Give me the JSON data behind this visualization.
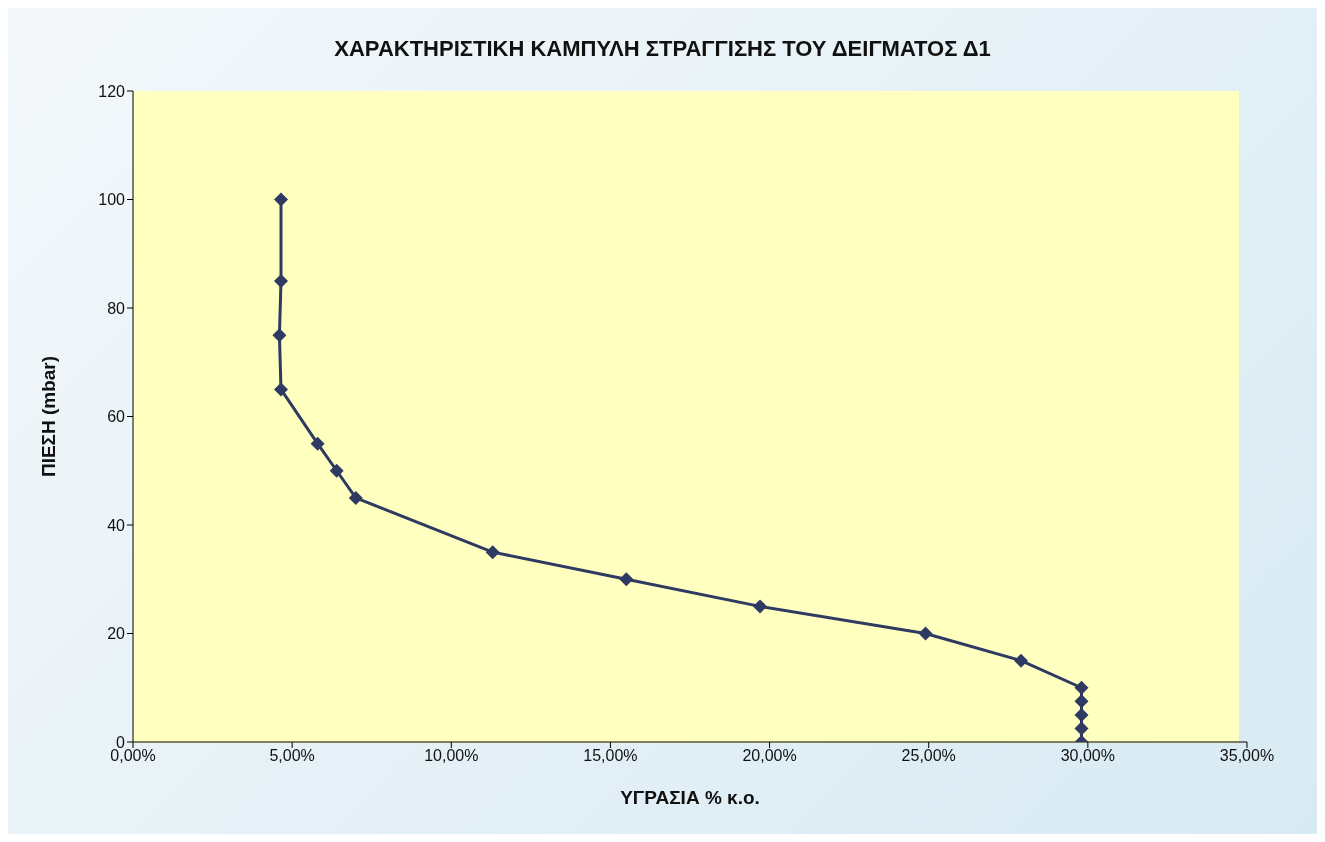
{
  "chart_data": {
    "type": "line",
    "title": "ΧΑΡΑΚΤΗΡΙΣΤΙΚΗ ΚΑΜΠΥΛΗ ΣΤΡΑΓΓΙΣΗΣ ΤΟΥ ΔΕΙΓΜΑΤΟΣ Δ1",
    "xlabel": "ΥΓΡΑΣΙΑ % κ.ο.",
    "ylabel": "ΠΙΕΣΗ (mbar)",
    "x": [
      4.65,
      4.65,
      4.6,
      4.65,
      5.8,
      6.4,
      7.0,
      11.3,
      15.5,
      19.7,
      24.9,
      27.9,
      29.8,
      29.8,
      29.8,
      29.8,
      29.8
    ],
    "series": [
      {
        "color": "#2f3a63",
        "values": [
          100,
          85,
          75,
          65,
          55,
          50,
          45,
          35,
          30,
          25,
          20,
          15,
          10,
          7.5,
          5,
          2.5,
          0
        ]
      }
    ],
    "xlim": [
      0,
      35
    ],
    "xticks": [
      {
        "value": 0,
        "label": "0,00%"
      },
      {
        "value": 5,
        "label": "5,00%"
      },
      {
        "value": 10,
        "label": "10,00%"
      },
      {
        "value": 15,
        "label": "15,00%"
      },
      {
        "value": 20,
        "label": "20,00%"
      },
      {
        "value": 25,
        "label": "25,00%"
      },
      {
        "value": 30,
        "label": "30,00%"
      },
      {
        "value": 35,
        "label": "35,00%"
      }
    ],
    "ylim": [
      0,
      120
    ],
    "yticks": [
      0,
      20,
      40,
      60,
      80,
      100,
      120
    ],
    "marker": "diamond",
    "line_style": "solid",
    "grid": false
  }
}
